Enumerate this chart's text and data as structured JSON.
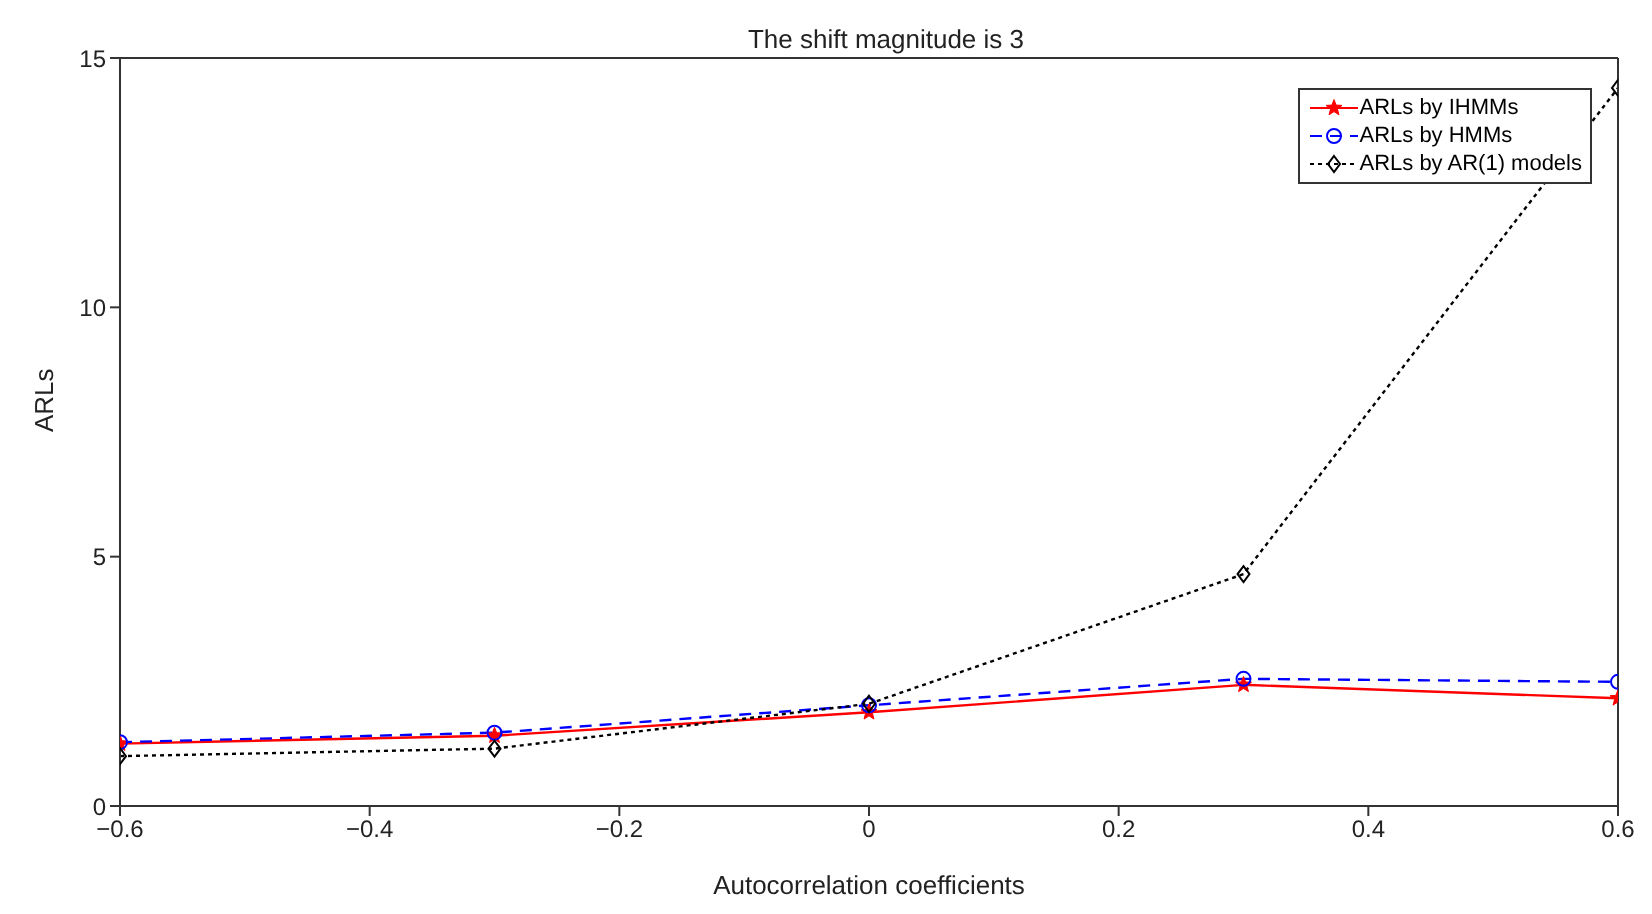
{
  "chart_data": {
    "type": "line",
    "title": "The shift magnitude is 3",
    "xlabel": "Autocorrelation coefficients",
    "ylabel": "ARLs",
    "x": [
      -0.6,
      -0.3,
      0,
      0.3,
      0.6
    ],
    "series": [
      {
        "name": "ARLs by IHMMs",
        "color": "#ff0000",
        "values": [
          1.25,
          1.41,
          1.88,
          2.43,
          2.16
        ],
        "marker": "star",
        "line_style": "solid"
      },
      {
        "name": "ARLs by HMMs",
        "color": "#0000ff",
        "values": [
          1.28,
          1.47,
          2.02,
          2.55,
          2.49
        ],
        "marker": "circle",
        "line_style": "dashed"
      },
      {
        "name": "ARLs by AR(1) models",
        "color": "#000000",
        "values": [
          1.0,
          1.15,
          2.05,
          4.65,
          14.4
        ],
        "marker": "diamond",
        "line_style": "dotted"
      }
    ],
    "xlim": [
      -0.6,
      0.6
    ],
    "xticks": [
      {
        "value": -0.6,
        "label": "−0.6"
      },
      {
        "value": -0.4,
        "label": "−0.4"
      },
      {
        "value": -0.2,
        "label": "−0.2"
      },
      0,
      0.2,
      0.4,
      0.6
    ],
    "ylim": [
      0,
      15
    ],
    "yticks": [
      0,
      5,
      10,
      15
    ],
    "grid": false,
    "legend": "top right"
  }
}
